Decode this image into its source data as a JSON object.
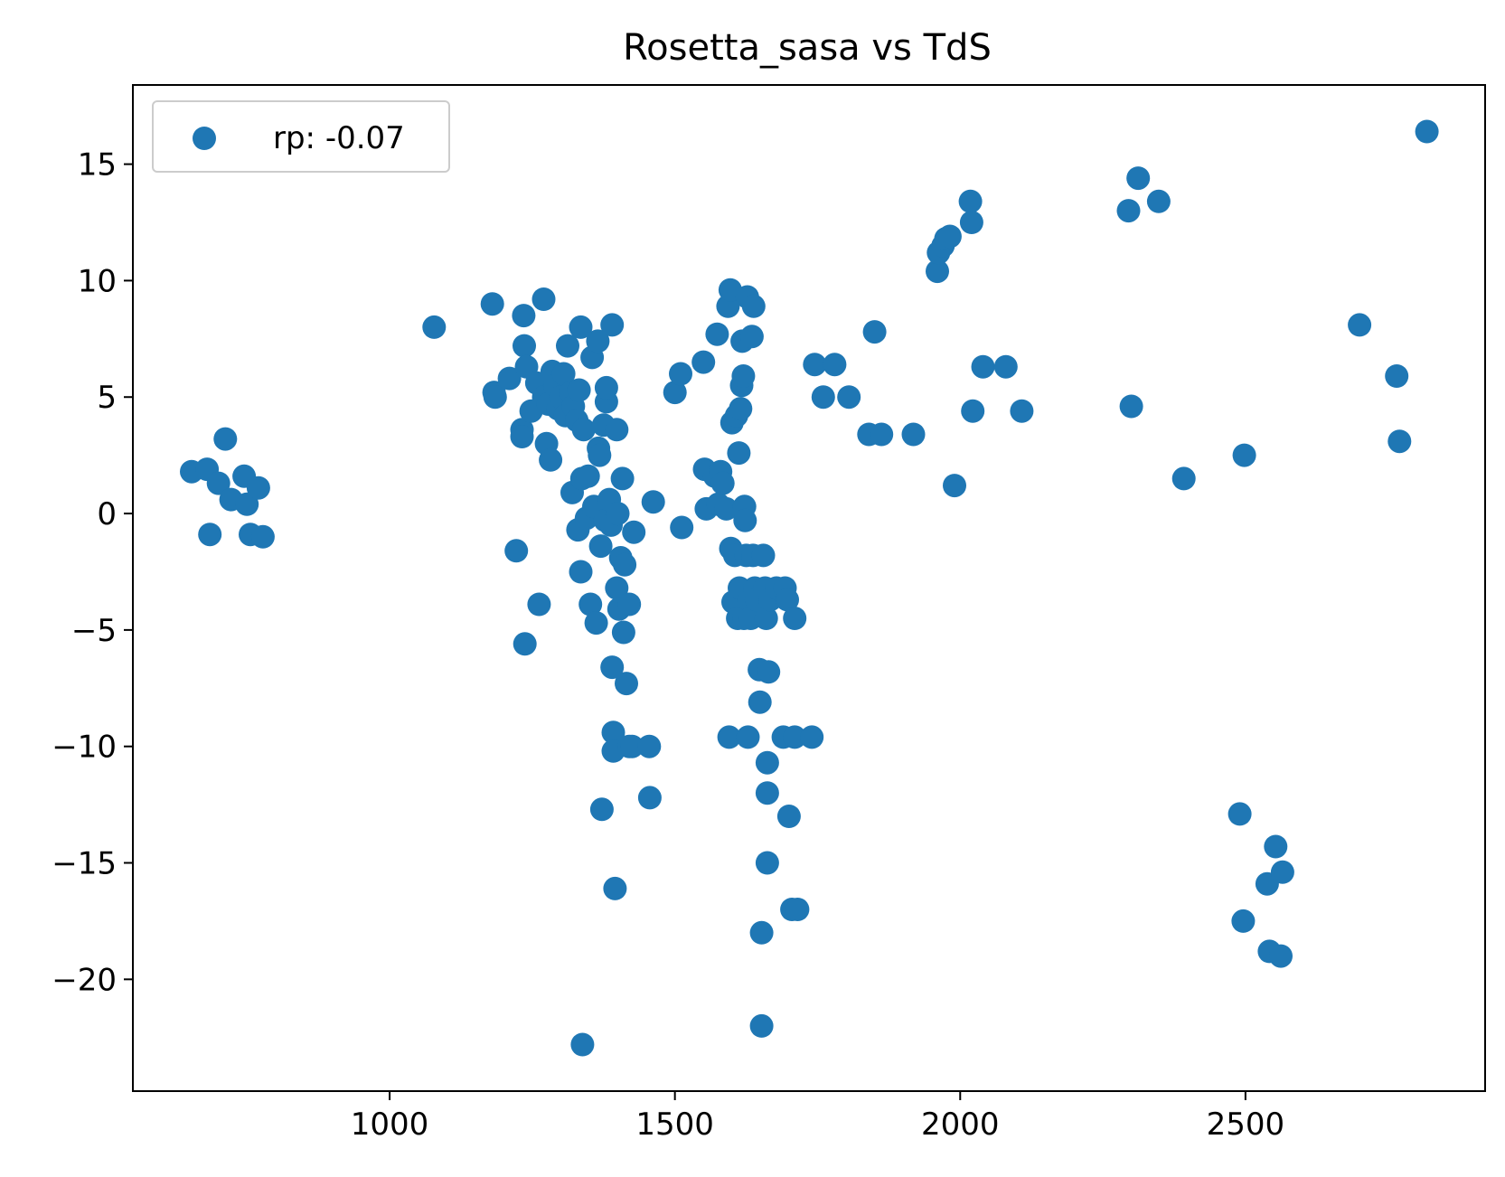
{
  "chart_data": {
    "type": "scatter",
    "title": "Rosetta_sasa vs TdS",
    "xlabel": "",
    "ylabel": "",
    "xlim": [
      550,
      2920
    ],
    "ylim": [
      -24.8,
      18.4
    ],
    "xticks": [
      1000,
      1500,
      2000,
      2500
    ],
    "yticks": [
      15,
      10,
      5,
      0,
      -5,
      -10,
      -15,
      -20
    ],
    "ytick_labels": [
      "15",
      "10",
      "5",
      "0",
      "−5",
      "−10",
      "−15",
      "−20"
    ],
    "grid": false,
    "legend_position": "top-left",
    "series": [
      {
        "name": "rp: -0.07",
        "color": "#1f77b4",
        "points": [
          [
            653,
            1.8
          ],
          [
            680,
            1.9
          ],
          [
            685,
            -0.9
          ],
          [
            700,
            1.3
          ],
          [
            712,
            3.2
          ],
          [
            722,
            0.6
          ],
          [
            745,
            1.6
          ],
          [
            750,
            0.4
          ],
          [
            756,
            -0.9
          ],
          [
            770,
            1.1
          ],
          [
            778,
            -1.0
          ],
          [
            1078,
            8.0
          ],
          [
            1180,
            9.0
          ],
          [
            1183,
            5.2
          ],
          [
            1185,
            5.0
          ],
          [
            1210,
            5.8
          ],
          [
            1222,
            -1.6
          ],
          [
            1232,
            3.6
          ],
          [
            1232,
            3.3
          ],
          [
            1235,
            8.5
          ],
          [
            1236,
            7.2
          ],
          [
            1237,
            -5.6
          ],
          [
            1240,
            6.3
          ],
          [
            1248,
            4.4
          ],
          [
            1258,
            5.6
          ],
          [
            1262,
            -3.9
          ],
          [
            1270,
            9.2
          ],
          [
            1270,
            5.0
          ],
          [
            1275,
            3.0
          ],
          [
            1278,
            4.7
          ],
          [
            1282,
            2.3
          ],
          [
            1285,
            6.1
          ],
          [
            1290,
            5.5
          ],
          [
            1295,
            4.5
          ],
          [
            1300,
            5.0
          ],
          [
            1305,
            6.0
          ],
          [
            1308,
            4.2
          ],
          [
            1312,
            7.2
          ],
          [
            1318,
            5.2
          ],
          [
            1320,
            0.9
          ],
          [
            1322,
            4.6
          ],
          [
            1328,
            4.0
          ],
          [
            1330,
            -0.7
          ],
          [
            1332,
            5.3
          ],
          [
            1335,
            8.0
          ],
          [
            1335,
            -2.5
          ],
          [
            1337,
            1.5
          ],
          [
            1338,
            -22.8
          ],
          [
            1340,
            3.6
          ],
          [
            1345,
            -0.2
          ],
          [
            1348,
            1.6
          ],
          [
            1352,
            -3.9
          ],
          [
            1355,
            6.7
          ],
          [
            1358,
            0.3
          ],
          [
            1362,
            -4.7
          ],
          [
            1365,
            7.4
          ],
          [
            1366,
            2.8
          ],
          [
            1368,
            2.5
          ],
          [
            1370,
            -1.4
          ],
          [
            1372,
            -12.7
          ],
          [
            1375,
            3.8
          ],
          [
            1378,
            -0.3
          ],
          [
            1380,
            4.8
          ],
          [
            1380,
            5.4
          ],
          [
            1385,
            0.6
          ],
          [
            1388,
            -0.5
          ],
          [
            1390,
            8.1
          ],
          [
            1390,
            -6.6
          ],
          [
            1392,
            -9.4
          ],
          [
            1392,
            -10.2
          ],
          [
            1395,
            -16.1
          ],
          [
            1398,
            3.6
          ],
          [
            1398,
            -3.2
          ],
          [
            1400,
            0.0
          ],
          [
            1402,
            -4.1
          ],
          [
            1405,
            -1.9
          ],
          [
            1408,
            1.5
          ],
          [
            1410,
            -5.1
          ],
          [
            1412,
            -2.2
          ],
          [
            1415,
            -7.3
          ],
          [
            1420,
            -3.9
          ],
          [
            1420,
            -10.0
          ],
          [
            1425,
            -10.0
          ],
          [
            1428,
            -0.8
          ],
          [
            1455,
            -10.0
          ],
          [
            1456,
            -12.2
          ],
          [
            1462,
            0.5
          ],
          [
            1500,
            5.2
          ],
          [
            1510,
            6.0
          ],
          [
            1512,
            -0.6
          ],
          [
            1550,
            6.5
          ],
          [
            1552,
            1.9
          ],
          [
            1555,
            0.2
          ],
          [
            1570,
            1.6
          ],
          [
            1574,
            7.7
          ],
          [
            1576,
            0.4
          ],
          [
            1580,
            1.8
          ],
          [
            1584,
            1.3
          ],
          [
            1590,
            0.2
          ],
          [
            1593,
            8.9
          ],
          [
            1595,
            -9.6
          ],
          [
            1597,
            9.6
          ],
          [
            1598,
            -1.5
          ],
          [
            1600,
            3.9
          ],
          [
            1602,
            -3.8
          ],
          [
            1605,
            -1.8
          ],
          [
            1608,
            4.2
          ],
          [
            1610,
            -4.5
          ],
          [
            1612,
            2.6
          ],
          [
            1613,
            -3.2
          ],
          [
            1615,
            4.5
          ],
          [
            1617,
            5.5
          ],
          [
            1618,
            7.4
          ],
          [
            1620,
            5.9
          ],
          [
            1621,
            -4.5
          ],
          [
            1622,
            0.3
          ],
          [
            1623,
            -0.3
          ],
          [
            1625,
            -1.8
          ],
          [
            1627,
            9.3
          ],
          [
            1628,
            -9.6
          ],
          [
            1630,
            -3.7
          ],
          [
            1633,
            -4.5
          ],
          [
            1635,
            7.6
          ],
          [
            1637,
            -1.8
          ],
          [
            1638,
            8.9
          ],
          [
            1640,
            -3.2
          ],
          [
            1643,
            -3.7
          ],
          [
            1648,
            -6.7
          ],
          [
            1649,
            -8.1
          ],
          [
            1652,
            -18.0
          ],
          [
            1652,
            -22.0
          ],
          [
            1655,
            -1.8
          ],
          [
            1658,
            -3.2
          ],
          [
            1660,
            -4.5
          ],
          [
            1662,
            -10.7
          ],
          [
            1662,
            -12.0
          ],
          [
            1662,
            -15.0
          ],
          [
            1664,
            -6.8
          ],
          [
            1667,
            -3.7
          ],
          [
            1678,
            -3.2
          ],
          [
            1690,
            -9.6
          ],
          [
            1693,
            -3.2
          ],
          [
            1697,
            -3.7
          ],
          [
            1700,
            -13.0
          ],
          [
            1705,
            -17.0
          ],
          [
            1710,
            -9.6
          ],
          [
            1710,
            -4.5
          ],
          [
            1715,
            -17.0
          ],
          [
            1740,
            -9.6
          ],
          [
            1745,
            6.4
          ],
          [
            1760,
            5.0
          ],
          [
            1780,
            6.4
          ],
          [
            1805,
            5.0
          ],
          [
            1840,
            3.4
          ],
          [
            1850,
            7.8
          ],
          [
            1862,
            3.4
          ],
          [
            1918,
            3.4
          ],
          [
            1960,
            10.4
          ],
          [
            1962,
            11.2
          ],
          [
            1970,
            11.5
          ],
          [
            1975,
            11.8
          ],
          [
            1982,
            11.9
          ],
          [
            1990,
            1.2
          ],
          [
            2018,
            13.4
          ],
          [
            2020,
            12.5
          ],
          [
            2022,
            4.4
          ],
          [
            2040,
            6.3
          ],
          [
            2080,
            6.3
          ],
          [
            2108,
            4.4
          ],
          [
            2295,
            13.0
          ],
          [
            2300,
            4.6
          ],
          [
            2312,
            14.4
          ],
          [
            2348,
            13.4
          ],
          [
            2392,
            1.5
          ],
          [
            2490,
            -12.9
          ],
          [
            2496,
            -17.5
          ],
          [
            2498,
            2.5
          ],
          [
            2538,
            -15.9
          ],
          [
            2542,
            -18.8
          ],
          [
            2553,
            -14.3
          ],
          [
            2562,
            -19.0
          ],
          [
            2565,
            -15.4
          ],
          [
            2700,
            8.1
          ],
          [
            2765,
            5.9
          ],
          [
            2770,
            3.1
          ],
          [
            2818,
            16.4
          ]
        ]
      }
    ]
  }
}
